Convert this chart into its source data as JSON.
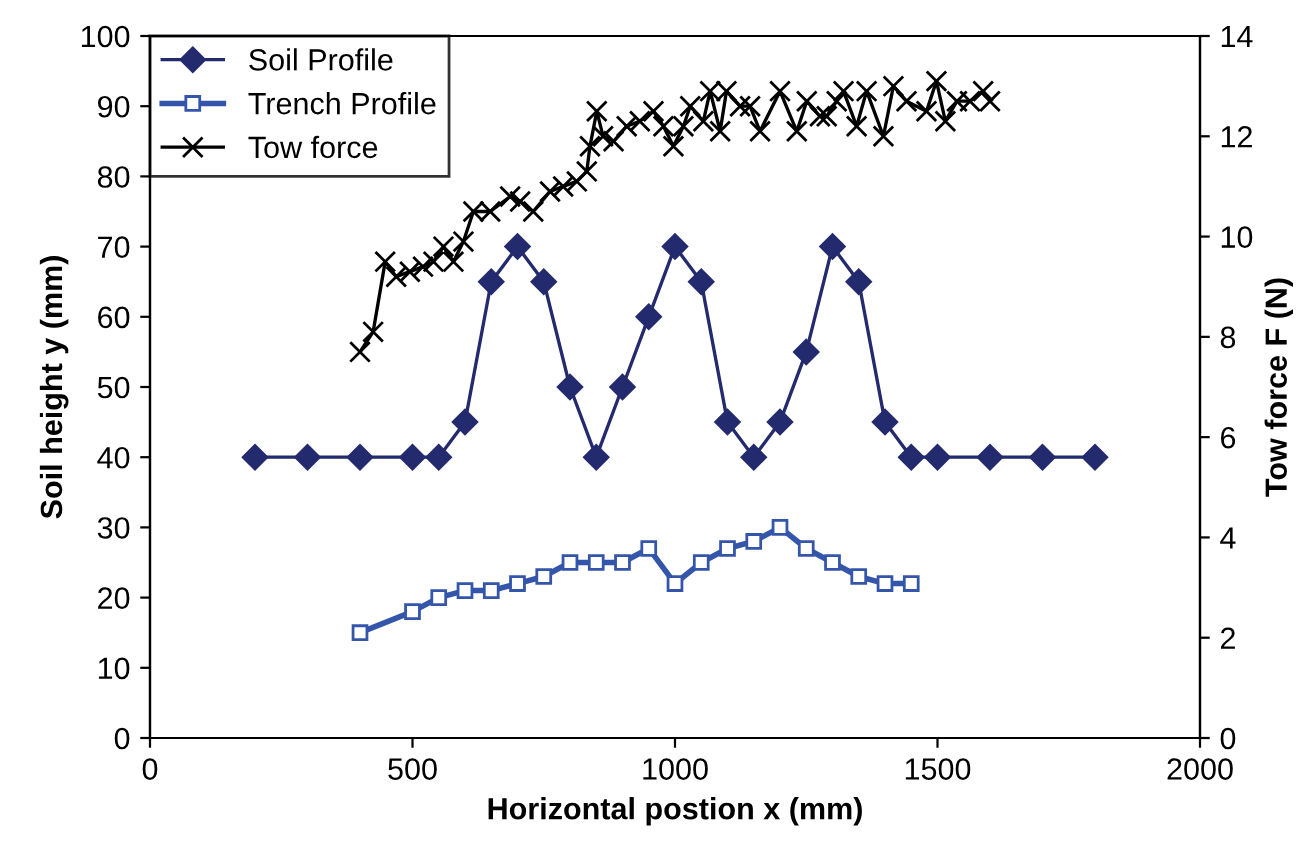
{
  "chart_data": {
    "type": "line",
    "xlabel": "Horizontal postion x (mm)",
    "ylabel": "Soil height y (mm)",
    "y2label": "Tow force F (N)",
    "xlim": [
      0,
      2000
    ],
    "xticks": [
      0,
      500,
      1000,
      1500,
      2000
    ],
    "ylim": [
      0,
      100
    ],
    "yticks": [
      0,
      10,
      20,
      30,
      40,
      50,
      60,
      70,
      80,
      90,
      100
    ],
    "y2lim": [
      0,
      14
    ],
    "y2ticks": [
      0,
      2,
      4,
      6,
      8,
      10,
      12,
      14
    ],
    "grid": false,
    "legend": "top left",
    "series": [
      {
        "name": "Soil Profile",
        "color": "#232a6e",
        "marker": "diamond",
        "x": [
          200,
          300,
          400,
          500,
          550,
          600,
          650,
          700,
          750,
          800,
          850,
          900,
          950,
          1000,
          1050,
          1100,
          1150,
          1200,
          1250,
          1300,
          1350,
          1400,
          1450,
          1500,
          1600,
          1700,
          1800
        ],
        "values": [
          40,
          40,
          40,
          40,
          40,
          45,
          65,
          70,
          65,
          50,
          40,
          50,
          60,
          70,
          65,
          45,
          40,
          45,
          55,
          70,
          65,
          45,
          40,
          40,
          40,
          40,
          40
        ]
      },
      {
        "name": "Trench Profile",
        "color": "#3355aa",
        "marker": "square",
        "x": [
          400,
          500,
          550,
          600,
          650,
          700,
          750,
          800,
          850,
          900,
          950,
          1000,
          1050,
          1100,
          1150,
          1200,
          1250,
          1300,
          1350,
          1400,
          1450
        ],
        "values": [
          15,
          18,
          20,
          21,
          21,
          22,
          23,
          25,
          25,
          25,
          27,
          22,
          25,
          27,
          28,
          30,
          27,
          25,
          23,
          22,
          22
        ]
      },
      {
        "name": "Tow force",
        "color": "#000000",
        "marker": "cross",
        "axis": "y2",
        "x": [
          400,
          425,
          448,
          469,
          495,
          520,
          540,
          559,
          578,
          597,
          616,
          648,
          686,
          705,
          730,
          762,
          787,
          813,
          832,
          838,
          851,
          863,
          883,
          908,
          933,
          959,
          978,
          997,
          1016,
          1029,
          1054,
          1067,
          1086,
          1098,
          1124,
          1143,
          1162,
          1200,
          1232,
          1251,
          1276,
          1289,
          1308,
          1321,
          1346,
          1365,
          1397,
          1416,
          1441,
          1479,
          1498,
          1515,
          1537,
          1562,
          1587,
          1600
        ],
        "values": [
          7.7,
          8.1,
          9.5,
          9.2,
          9.3,
          9.4,
          9.5,
          9.8,
          9.5,
          9.9,
          10.5,
          10.5,
          10.8,
          10.7,
          10.5,
          10.9,
          11.0,
          11.1,
          11.3,
          11.8,
          12.5,
          12.0,
          11.9,
          12.2,
          12.3,
          12.5,
          12.2,
          11.8,
          12.2,
          12.6,
          12.3,
          12.9,
          12.1,
          12.9,
          12.6,
          12.6,
          12.1,
          12.9,
          12.1,
          12.7,
          12.4,
          12.4,
          12.7,
          12.9,
          12.2,
          12.9,
          12.0,
          13.0,
          12.7,
          12.5,
          13.1,
          12.3,
          12.7,
          12.7,
          12.9,
          12.7
        ]
      }
    ]
  }
}
